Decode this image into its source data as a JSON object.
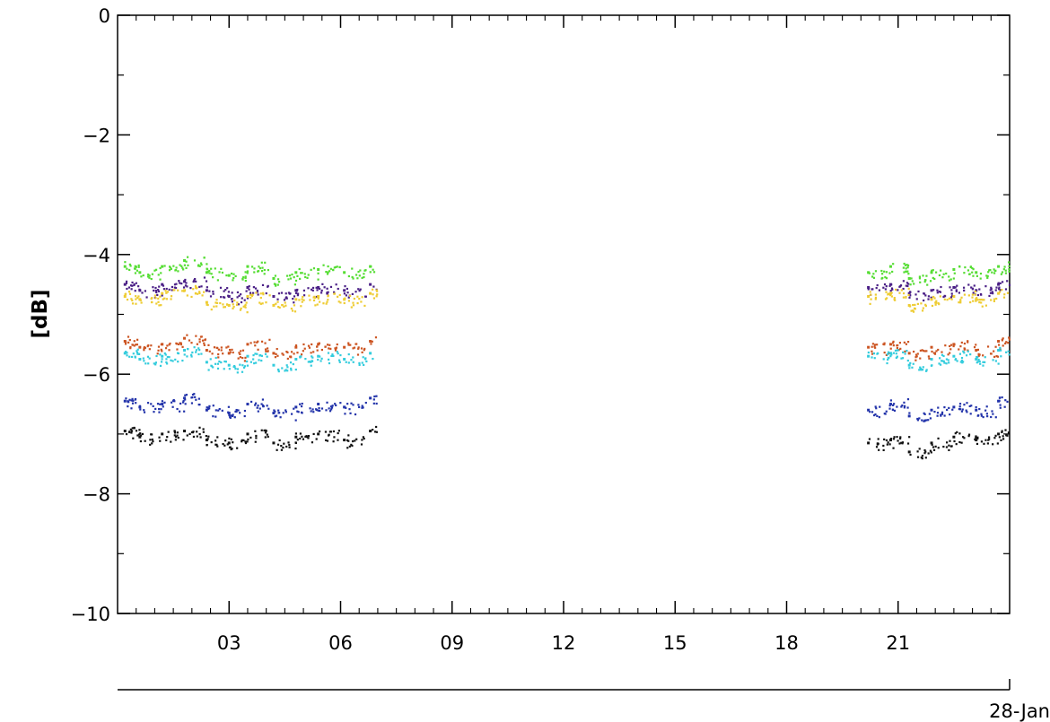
{
  "chart_data": {
    "type": "scatter",
    "title": "",
    "ylabel": "[dB]",
    "date_label": "28-Jan",
    "ylim": [
      -10,
      0
    ],
    "xlim_hours": [
      0,
      24
    ],
    "y_ticks": [
      {
        "value": 0,
        "label": "0"
      },
      {
        "value": -2,
        "label": "−2"
      },
      {
        "value": -4,
        "label": "−4"
      },
      {
        "value": -6,
        "label": "−6"
      },
      {
        "value": -8,
        "label": "−8"
      },
      {
        "value": -10,
        "label": "−10"
      }
    ],
    "x_ticks": [
      {
        "value": 3,
        "label": "03"
      },
      {
        "value": 6,
        "label": "06"
      },
      {
        "value": 9,
        "label": "09"
      },
      {
        "value": 12,
        "label": "12"
      },
      {
        "value": 15,
        "label": "15"
      },
      {
        "value": 18,
        "label": "18"
      },
      {
        "value": 21,
        "label": "21"
      }
    ],
    "grid": false,
    "data_windows_hours": [
      [
        0.0,
        7.0
      ],
      [
        20.0,
        24.0
      ]
    ],
    "series": [
      {
        "color": "#55dd33",
        "level": -4.25,
        "x": [
          0.2,
          0.6,
          1.2,
          1.8,
          2.4,
          3.0,
          3.5,
          4.2,
          4.8,
          5.4,
          6.1,
          6.8,
          20.2,
          20.8,
          21.3,
          21.9,
          22.5,
          23.1,
          23.7
        ],
        "y": [
          -4.2,
          -4.3,
          -4.2,
          -4.1,
          -4.3,
          -4.35,
          -4.2,
          -4.4,
          -4.3,
          -4.25,
          -4.3,
          -4.2,
          -4.3,
          -4.2,
          -4.4,
          -4.3,
          -4.25,
          -4.3,
          -4.2
        ]
      },
      {
        "color": "#4a1f86",
        "level": -4.55,
        "x": [
          0.2,
          0.6,
          1.2,
          1.8,
          2.4,
          3.0,
          3.5,
          4.2,
          4.8,
          5.4,
          6.1,
          6.8,
          20.2,
          20.8,
          21.3,
          21.9,
          22.5,
          23.1,
          23.7
        ],
        "y": [
          -4.5,
          -4.6,
          -4.5,
          -4.45,
          -4.6,
          -4.7,
          -4.55,
          -4.7,
          -4.6,
          -4.55,
          -4.6,
          -4.5,
          -4.55,
          -4.5,
          -4.65,
          -4.6,
          -4.55,
          -4.6,
          -4.5
        ]
      },
      {
        "color": "#eecc33",
        "level": -4.7,
        "x": [
          0.2,
          0.6,
          1.2,
          1.8,
          2.4,
          3.0,
          3.5,
          4.2,
          4.8,
          5.4,
          6.1,
          6.8,
          20.2,
          20.8,
          21.3,
          21.9,
          22.5,
          23.1,
          23.7
        ],
        "y": [
          -4.7,
          -4.75,
          -4.65,
          -4.6,
          -4.8,
          -4.85,
          -4.7,
          -4.85,
          -4.75,
          -4.7,
          -4.75,
          -4.65,
          -4.7,
          -4.65,
          -4.85,
          -4.75,
          -4.7,
          -4.75,
          -4.65
        ]
      },
      {
        "color": "#cc5522",
        "level": -5.5,
        "x": [
          0.2,
          0.6,
          1.2,
          1.8,
          2.4,
          3.0,
          3.5,
          4.2,
          4.8,
          5.4,
          6.1,
          6.8,
          20.2,
          20.8,
          21.3,
          21.9,
          22.5,
          23.1,
          23.7
        ],
        "y": [
          -5.45,
          -5.55,
          -5.5,
          -5.4,
          -5.6,
          -5.65,
          -5.5,
          -5.65,
          -5.55,
          -5.5,
          -5.55,
          -5.45,
          -5.55,
          -5.5,
          -5.65,
          -5.55,
          -5.5,
          -5.6,
          -5.45
        ]
      },
      {
        "color": "#33ccdd",
        "level": -5.7,
        "x": [
          0.2,
          0.6,
          1.2,
          1.8,
          2.4,
          3.0,
          3.5,
          4.2,
          4.8,
          5.4,
          6.1,
          6.8,
          20.2,
          20.8,
          21.3,
          21.9,
          22.5,
          23.1,
          23.7
        ],
        "y": [
          -5.65,
          -5.75,
          -5.7,
          -5.6,
          -5.8,
          -5.85,
          -5.7,
          -5.85,
          -5.75,
          -5.7,
          -5.75,
          -5.65,
          -5.7,
          -5.65,
          -5.85,
          -5.75,
          -5.7,
          -5.75,
          -5.6
        ]
      },
      {
        "color": "#2233aa",
        "level": -6.5,
        "x": [
          0.2,
          0.6,
          1.2,
          1.8,
          2.4,
          3.0,
          3.5,
          4.2,
          4.8,
          5.4,
          6.1,
          6.8,
          20.2,
          20.8,
          21.3,
          21.9,
          22.5,
          23.1,
          23.7
        ],
        "y": [
          -6.45,
          -6.55,
          -6.5,
          -6.4,
          -6.6,
          -6.65,
          -6.5,
          -6.65,
          -6.55,
          -6.5,
          -6.55,
          -6.4,
          -6.6,
          -6.5,
          -6.7,
          -6.6,
          -6.55,
          -6.6,
          -6.45
        ]
      },
      {
        "color": "#111111",
        "level": -7.05,
        "x": [
          0.2,
          0.6,
          1.2,
          1.8,
          2.4,
          3.0,
          3.5,
          4.2,
          4.8,
          5.4,
          6.1,
          6.8,
          20.2,
          20.8,
          21.3,
          21.9,
          22.5,
          23.1,
          23.7
        ],
        "y": [
          -6.95,
          -7.05,
          -7.0,
          -6.95,
          -7.1,
          -7.15,
          -7.0,
          -7.15,
          -7.05,
          -7.0,
          -7.1,
          -6.95,
          -7.15,
          -7.1,
          -7.3,
          -7.15,
          -7.05,
          -7.1,
          -7.0
        ]
      }
    ]
  }
}
